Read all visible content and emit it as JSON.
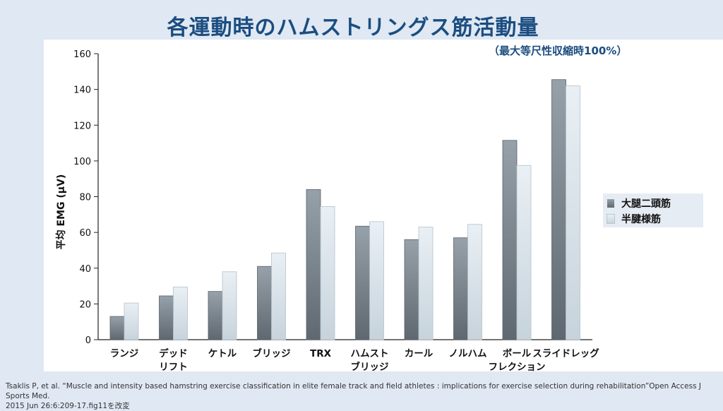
{
  "title": "各運動時のハムストリングス筋活動量",
  "subtitle": "（最大等尺性収縮時100%）",
  "chart_data": {
    "type": "bar",
    "ylabel": "平均 EMG (μV)",
    "ylim": [
      0,
      160
    ],
    "yticks": [
      0,
      20,
      40,
      60,
      80,
      100,
      120,
      140,
      160
    ],
    "categories": [
      [
        "ランジ"
      ],
      [
        "デッド",
        "リフト"
      ],
      [
        "ケトル"
      ],
      [
        "ブリッジ"
      ],
      [
        "TRX"
      ],
      [
        "ハムスト",
        "ブリッジ"
      ],
      [
        "カール"
      ],
      [
        "ノルハム"
      ],
      [
        "ボール",
        "フレクション"
      ],
      [
        "スライドレッグ"
      ]
    ],
    "series": [
      {
        "name": "大腿二頭筋",
        "color": "#7a838c",
        "values": [
          13,
          24.5,
          27,
          41,
          84,
          63.5,
          56,
          57,
          111.5,
          145.5
        ]
      },
      {
        "name": "半腱様筋",
        "color": "#dbe5ec",
        "values": [
          20.5,
          29.5,
          38,
          48.5,
          74.5,
          66,
          63,
          64.5,
          97.5,
          142
        ]
      }
    ],
    "legend": "right"
  },
  "source": {
    "line1": "Tsaklis P, et al. “Muscle and intensity based hamstring exercise classification in elite female track and field athletes : implications for exercise selection during rehabilitation”Open Access J Sports Med.",
    "line2": "2015 Jun 26:6:209-17.fig11を改変"
  }
}
